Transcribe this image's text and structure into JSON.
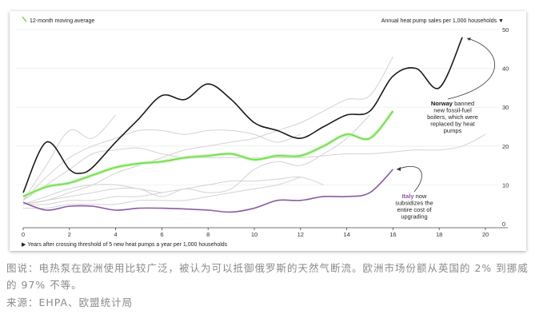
{
  "chart_data": {
    "type": "line",
    "legend": {
      "label": "12-month moving average",
      "color": "#6fdc4a",
      "placement": "top-left"
    },
    "ylabel": "Annual heat pump sales per 1,000 households ▼",
    "xlabel": "▶ Years after crossing threshold of 5 new heat pumps a year per 1,000 households",
    "xlim": [
      0,
      20
    ],
    "ylim": [
      0,
      50
    ],
    "xticks": [
      "0",
      "2",
      "4",
      "6",
      "8",
      "10",
      "12",
      "14",
      "16",
      "18",
      "20"
    ],
    "yticks": [
      "0",
      "10",
      "20",
      "30",
      "40",
      "50"
    ],
    "grid": "horizontal",
    "series": [
      {
        "name": "Norway",
        "color": "#1a1a1a",
        "x": [
          0,
          1,
          2,
          2.5,
          3,
          4,
          5,
          6,
          7,
          8,
          9,
          10,
          11,
          12,
          13,
          14,
          15,
          16,
          17,
          18,
          19
        ],
        "values": [
          8,
          21,
          14,
          13,
          14.5,
          21,
          27,
          33,
          32,
          36,
          32,
          26,
          24,
          22,
          25,
          28,
          29,
          38,
          40,
          35,
          48
        ]
      },
      {
        "name": "Italy",
        "color": "#8a5aa8",
        "x": [
          0,
          1,
          2,
          3,
          4,
          5,
          6,
          7,
          8,
          9,
          10,
          11,
          12,
          13,
          14,
          15,
          16
        ],
        "values": [
          5.5,
          3.5,
          4.5,
          4.5,
          3.5,
          4,
          4,
          3.8,
          3.5,
          3,
          4,
          6,
          6,
          7,
          7,
          8,
          14
        ]
      },
      {
        "name": "",
        "role": "average",
        "color": "#6fdc4a",
        "x": [
          0,
          1,
          2,
          3,
          4,
          5,
          6,
          7,
          8,
          9,
          10,
          11,
          12,
          13,
          14,
          15,
          16
        ],
        "values": [
          7,
          9.5,
          10.5,
          12.5,
          14.5,
          15.5,
          16,
          17,
          17.5,
          18,
          16.5,
          17.5,
          17.5,
          20,
          23,
          22,
          29
        ]
      },
      {
        "name": "",
        "color": "#d2d2d2",
        "x": [
          0,
          1,
          2,
          3,
          4
        ],
        "values": [
          6,
          15,
          24,
          22,
          28
        ]
      },
      {
        "name": "",
        "color": "#d2d2d2",
        "x": [
          0,
          1,
          2,
          3,
          4,
          5,
          6,
          7,
          8,
          9,
          10,
          11,
          12,
          13,
          14,
          15,
          16,
          17,
          18,
          19,
          20
        ],
        "values": [
          6,
          10,
          14,
          18,
          19,
          19.5,
          18,
          17,
          17,
          17,
          17,
          17,
          17,
          17.5,
          18,
          18,
          18.5,
          19,
          19,
          20,
          23
        ]
      },
      {
        "name": "",
        "color": "#d2d2d2",
        "x": [
          0,
          1,
          2,
          3,
          4,
          5,
          6,
          7,
          8,
          9,
          10,
          11,
          12,
          13,
          14,
          15,
          16
        ],
        "values": [
          5,
          6,
          8,
          10,
          13,
          15,
          17,
          19,
          20,
          21,
          22,
          24,
          26,
          29,
          32,
          33,
          43
        ]
      },
      {
        "name": "",
        "color": "#d2d2d2",
        "x": [
          0,
          1,
          2,
          3,
          4,
          5,
          6,
          7,
          8,
          9,
          10,
          11,
          12,
          13,
          14,
          15
        ],
        "values": [
          5,
          6,
          7,
          8,
          9,
          9,
          7,
          9,
          8,
          9,
          14,
          16,
          15,
          18,
          22,
          28
        ]
      },
      {
        "name": "",
        "color": "#d2d2d2",
        "x": [
          0,
          1,
          2,
          3,
          4,
          5,
          6,
          7,
          8,
          9,
          10,
          11,
          12,
          13
        ],
        "values": [
          5,
          5,
          6,
          6,
          7,
          7,
          8,
          9,
          10,
          11,
          11,
          11.5,
          12,
          10
        ]
      },
      {
        "name": "",
        "color": "#d2d2d2",
        "x": [
          0,
          1,
          2,
          3,
          4,
          5,
          6
        ],
        "values": [
          5,
          7,
          9,
          10,
          10,
          9,
          8
        ]
      },
      {
        "name": "",
        "color": "#d2d2d2",
        "x": [
          0,
          1,
          2,
          3,
          4,
          5,
          6,
          7,
          8,
          9,
          10,
          11,
          12
        ],
        "values": [
          6,
          12,
          17,
          20,
          22,
          24,
          24,
          23,
          24,
          24,
          23,
          21,
          23
        ]
      },
      {
        "name": "",
        "color": "#d2d2d2",
        "x": [
          0,
          1,
          2,
          3,
          4,
          5,
          6,
          7,
          8,
          9,
          10,
          11,
          12
        ],
        "values": [
          4,
          4,
          5,
          5,
          5,
          6,
          6,
          6,
          7,
          8,
          9,
          10,
          12
        ]
      }
    ],
    "annotations": [
      {
        "bold": "Norway",
        "lines": [
          " banned",
          "new fossil-fuel",
          "boilers, which were",
          "replaced by heat",
          "pumps"
        ]
      },
      {
        "bold": "Italy",
        "lines": [
          " now",
          "subsidizes the",
          "entire cost of",
          "upgrading"
        ]
      }
    ]
  },
  "caption": "图说：电热泵在欧洲使用比较广泛，被认为可以抵御俄罗斯的天然气断流。欧洲市场份额从英国的 2% 到挪威的 97% 不等。",
  "source": "来源：EHPA、欧盟统计局"
}
